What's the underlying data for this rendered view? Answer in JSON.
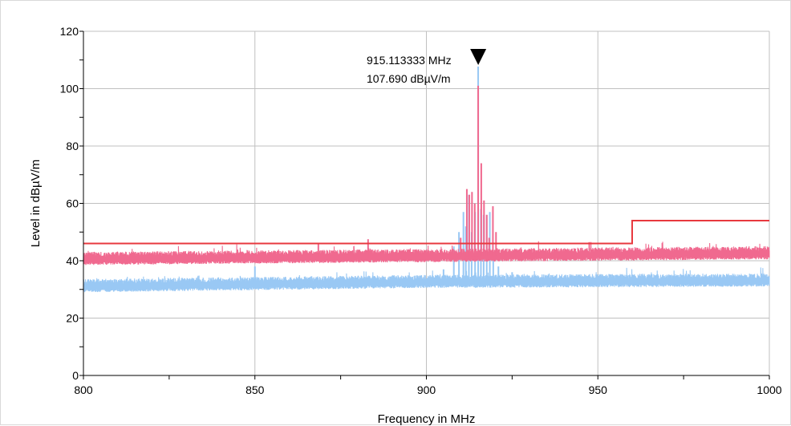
{
  "chart_data": {
    "type": "line",
    "xlabel": "Frequency in MHz",
    "ylabel": "Level in dBµV/m",
    "xlim": [
      800,
      1000
    ],
    "ylim": [
      0,
      120
    ],
    "x_ticks": [
      "800",
      "850",
      "900",
      "950",
      "1000"
    ],
    "y_ticks": [
      "0",
      "20",
      "40",
      "60",
      "80",
      "100",
      "120"
    ],
    "grid": true,
    "colors": {
      "peak_trace": "#f0698f",
      "average_trace": "#99c8f4",
      "limit_line": "#e8393f",
      "grid": "#c0c0c0",
      "marker": "#000000"
    },
    "series": [
      {
        "role": "limit",
        "color": "#e8393f",
        "points": [
          [
            800,
            46
          ],
          [
            960,
            46
          ],
          [
            960,
            54
          ],
          [
            1000,
            54
          ]
        ]
      },
      {
        "role": "peak",
        "color": "#f0698f",
        "baseline": [
          [
            800,
            40.5
          ],
          [
            900,
            41.5
          ],
          [
            1000,
            42.5
          ]
        ],
        "noise_band": 2,
        "spikes": [
          [
            868.5,
            46
          ],
          [
            883,
            47.5
          ],
          [
            910,
            48
          ],
          [
            911.8,
            65
          ],
          [
            912.5,
            63
          ],
          [
            913.3,
            64
          ],
          [
            914.1,
            60
          ],
          [
            915.1,
            101
          ],
          [
            916.0,
            74
          ],
          [
            916.8,
            61
          ],
          [
            917.6,
            56
          ],
          [
            918.3,
            48
          ],
          [
            919.4,
            59
          ],
          [
            920.3,
            50
          ],
          [
            947.5,
            46.5
          ]
        ]
      },
      {
        "role": "average",
        "color": "#99c8f4",
        "baseline": [
          [
            800,
            31
          ],
          [
            900,
            32.5
          ],
          [
            1000,
            33
          ]
        ],
        "noise_band": 2,
        "spikes": [
          [
            850,
            38
          ],
          [
            905,
            37
          ],
          [
            908,
            45
          ],
          [
            909.5,
            50
          ],
          [
            910.8,
            57
          ],
          [
            911.5,
            52
          ],
          [
            912.4,
            63
          ],
          [
            913.2,
            50
          ],
          [
            914.2,
            57
          ],
          [
            915.1,
            107.69
          ],
          [
            915.9,
            58
          ],
          [
            916.7,
            56
          ],
          [
            917.6,
            56
          ],
          [
            918.5,
            57
          ],
          [
            919.5,
            40
          ],
          [
            921,
            38
          ],
          [
            925,
            36
          ]
        ]
      }
    ],
    "marker": {
      "x": 915.113333,
      "y": 107.69,
      "label_frequency": "915.113333 MHz",
      "label_level": "107.690 dBµV/m"
    }
  }
}
